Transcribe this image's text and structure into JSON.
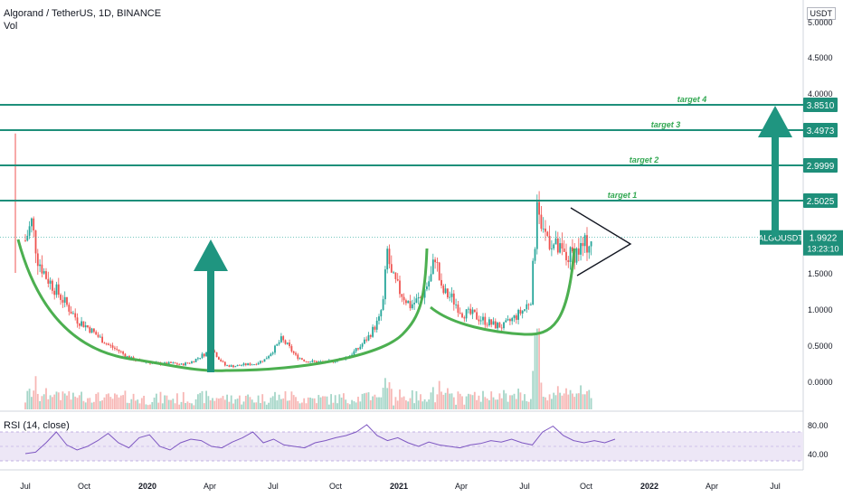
{
  "header": {
    "title": "Algorand / TetherUS, 1D, BINANCE",
    "volume_label": "Vol",
    "currency_unit": "USDT"
  },
  "colors": {
    "target_line": "#1e8f7a",
    "target_text": "#32a852",
    "curve": "#4caf50",
    "arrow": "#1f9580",
    "rsi_line": "#7e57c2",
    "rsi_band": "#ede7f6",
    "up_candle": "#26a69a",
    "down_candle": "#ef5350"
  },
  "chart_data": {
    "type": "candlestick",
    "x_ticks": [
      "Jul",
      "Oct",
      "2020",
      "Apr",
      "Jul",
      "Oct",
      "2021",
      "Apr",
      "Jul",
      "Oct",
      "2022",
      "Apr",
      "Jul"
    ],
    "y_ticks": [
      "5.0000",
      "4.5000",
      "4.0000",
      "1.5000",
      "1.0000",
      "0.5000",
      "0.0000"
    ],
    "ylim": [
      0,
      5
    ],
    "targets": [
      {
        "label": "target 1",
        "value": 2.5025,
        "tag": "2.5025"
      },
      {
        "label": "target 2",
        "value": 2.9999,
        "tag": "2.9999"
      },
      {
        "label": "target 3",
        "value": 3.4973,
        "tag": "3.4973"
      },
      {
        "label": "target 4",
        "value": 3.851,
        "tag": "3.8510"
      }
    ],
    "current": {
      "symbol": "ALGOUSDT",
      "price": 1.9922,
      "price_tag": "1.9922",
      "countdown": "13:23:10"
    },
    "price_path": [
      [
        0,
        1.95
      ],
      [
        0.3,
        2.2
      ],
      [
        0.6,
        1.7
      ],
      [
        1,
        1.45
      ],
      [
        1.5,
        1.25
      ],
      [
        2,
        1.05
      ],
      [
        2.5,
        0.85
      ],
      [
        3,
        0.75
      ],
      [
        3.5,
        0.62
      ],
      [
        4,
        0.5
      ],
      [
        4.5,
        0.42
      ],
      [
        5,
        0.32
      ],
      [
        5.5,
        0.28
      ],
      [
        6,
        0.26
      ],
      [
        6.5,
        0.24
      ],
      [
        7,
        0.25
      ],
      [
        7.5,
        0.23
      ],
      [
        8,
        0.27
      ],
      [
        8.5,
        0.36
      ],
      [
        9,
        0.44
      ],
      [
        9.3,
        0.32
      ],
      [
        9.6,
        0.22
      ],
      [
        10,
        0.21
      ],
      [
        10.5,
        0.23
      ],
      [
        11,
        0.24
      ],
      [
        11.5,
        0.3
      ],
      [
        12,
        0.46
      ],
      [
        12.3,
        0.58
      ],
      [
        12.6,
        0.5
      ],
      [
        13,
        0.35
      ],
      [
        13.5,
        0.28
      ],
      [
        14,
        0.27
      ],
      [
        14.5,
        0.26
      ],
      [
        15,
        0.3
      ],
      [
        15.5,
        0.34
      ],
      [
        16,
        0.45
      ],
      [
        16.5,
        0.62
      ],
      [
        17,
        0.85
      ],
      [
        17.2,
        1.1
      ],
      [
        17.4,
        1.8
      ],
      [
        17.6,
        1.45
      ],
      [
        18,
        1.25
      ],
      [
        18.5,
        1.05
      ],
      [
        19,
        1.15
      ],
      [
        19.5,
        1.45
      ],
      [
        19.7,
        1.75
      ],
      [
        20,
        1.25
      ],
      [
        20.5,
        1.15
      ],
      [
        21,
        0.95
      ],
      [
        21.5,
        0.92
      ],
      [
        22,
        0.85
      ],
      [
        22.5,
        0.78
      ],
      [
        23,
        0.76
      ],
      [
        23.5,
        0.88
      ],
      [
        24,
        1.0
      ],
      [
        24.3,
        1.15
      ],
      [
        24.6,
        2.35
      ],
      [
        25,
        2.05
      ],
      [
        25.5,
        1.85
      ],
      [
        26,
        1.7
      ],
      [
        26.5,
        1.8
      ],
      [
        27,
        1.9
      ],
      [
        27.3,
        1.99
      ]
    ],
    "rsi": {
      "label": "RSI (14, close)",
      "ticks": [
        "80.00",
        "40.00"
      ],
      "values": [
        40,
        42,
        55,
        70,
        52,
        45,
        50,
        58,
        68,
        55,
        48,
        62,
        66,
        50,
        45,
        55,
        60,
        58,
        50,
        48,
        56,
        62,
        70,
        55,
        60,
        52,
        50,
        48,
        55,
        58,
        62,
        65,
        70,
        80,
        65,
        58,
        62,
        55,
        50,
        56,
        52,
        50,
        48,
        52,
        54,
        58,
        56,
        60,
        55,
        52,
        70,
        78,
        65,
        58,
        55,
        58,
        55,
        60
      ]
    }
  }
}
